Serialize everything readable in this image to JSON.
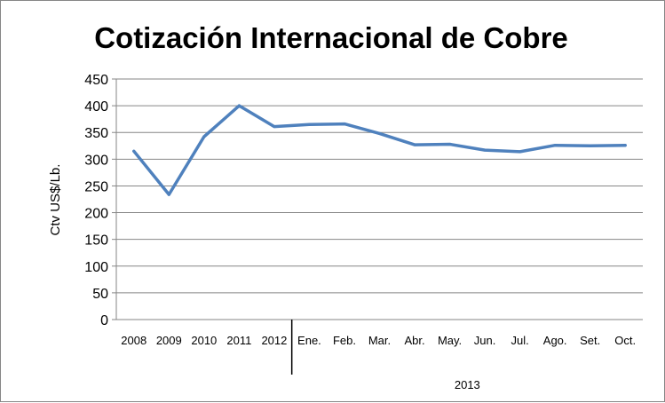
{
  "chart_data": {
    "type": "line",
    "title": "Cotización Internacional de Cobre",
    "ylabel": "Ctv US$/Lb.",
    "xlabel": "",
    "categories": [
      "2008",
      "2009",
      "2010",
      "2011",
      "2012",
      "Ene.",
      "Feb.",
      "Mar.",
      "Abr.",
      "May.",
      "Jun.",
      "Jul.",
      "Ago.",
      "Set.",
      "Oct."
    ],
    "category_group": {
      "label": "2013",
      "start_index": 5,
      "end_index": 14
    },
    "series": [
      {
        "values": [
          315,
          234,
          342,
          400,
          361,
          365,
          366,
          348,
          327,
          328,
          317,
          314,
          326,
          325,
          326
        ]
      }
    ],
    "ylim": [
      0,
      450
    ],
    "yticks": [
      "0",
      "50",
      "100",
      "150",
      "200",
      "250",
      "300",
      "350",
      "400",
      "450"
    ],
    "grid": true,
    "legend": "none",
    "colors": {
      "line": "#4f81bd",
      "grid": "#868686",
      "axis": "#868686",
      "separator": "#000000"
    }
  }
}
